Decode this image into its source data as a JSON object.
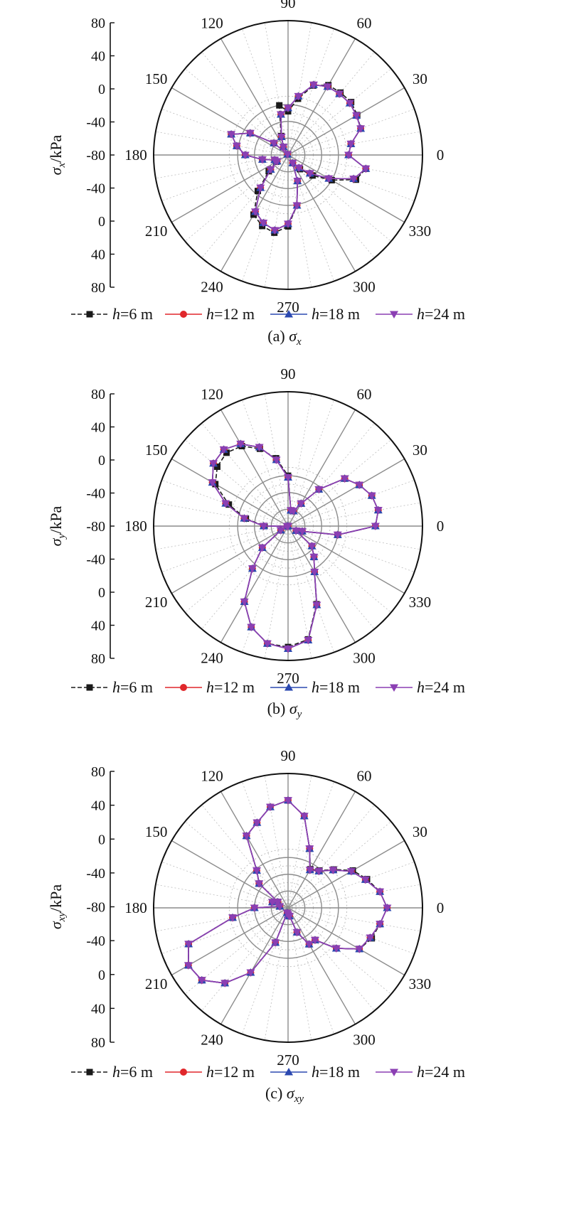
{
  "chart_data": [
    {
      "type": "polar-line",
      "caption": "(a) σx",
      "caption_prefix": "(a)",
      "caption_symbol": "σ",
      "caption_sub": "x",
      "ylabel_symbol": "σ",
      "ylabel_sub": "x",
      "ylabel_unit": "/kPa",
      "radial_ticks": [
        "80",
        "40",
        "0",
        "-40",
        "-80",
        "-40",
        "0",
        "40",
        "80"
      ],
      "angle_labels": [
        "0",
        "30",
        "60",
        "90",
        "120",
        "150",
        "180",
        "210",
        "240",
        "270",
        "300",
        "330"
      ],
      "r_range": [
        -80,
        80
      ],
      "angle_step_deg": 10,
      "grid": true,
      "legend_position": "bottom",
      "series": [
        {
          "name": "h=6 m",
          "color": "#1a1a1a",
          "marker": "square",
          "dashed": true,
          "values": [
            -8,
            -4,
            12,
            15,
            18,
            17,
            16,
            8,
            -12,
            -28,
            -20,
            -56,
            -69,
            -79,
            -58,
            -28,
            -8,
            -18,
            -29,
            -49,
            -63,
            -64,
            -50,
            -24,
            2,
            10,
            14,
            5,
            -19,
            -47,
            -69,
            -58,
            -42,
            -20,
            6,
            14
          ]
        },
        {
          "name": "h=12 m",
          "color": "#e0272b",
          "marker": "circle",
          "values": [
            -8,
            -4,
            12,
            14,
            16,
            15,
            14,
            9,
            -9,
            -24,
            -31,
            -57,
            -69,
            -79,
            -58,
            -28,
            -8,
            -18,
            -29,
            -49,
            -63,
            -65,
            -53,
            -29,
            -2,
            6,
            11,
            2,
            -19,
            -47,
            -69,
            -60,
            -46,
            -24,
            3,
            14
          ]
        },
        {
          "name": "h=18 m",
          "color": "#2b48b0",
          "marker": "triangle-up",
          "values": [
            -8,
            -4,
            12,
            14,
            16,
            15,
            14,
            9,
            -9,
            -24,
            -31,
            -57,
            -69,
            -79,
            -58,
            -28,
            -8,
            -18,
            -29,
            -49,
            -63,
            -65,
            -53,
            -29,
            -2,
            6,
            11,
            2,
            -19,
            -47,
            -69,
            -60,
            -46,
            -24,
            3,
            14
          ]
        },
        {
          "name": "h=24 m",
          "color": "#8b3fb3",
          "marker": "triangle-down",
          "values": [
            -8,
            -4,
            12,
            14,
            16,
            15,
            14,
            9,
            -9,
            -24,
            -31,
            -57,
            -69,
            -79,
            -58,
            -28,
            -8,
            -18,
            -29,
            -49,
            -63,
            -65,
            -53,
            -29,
            -2,
            6,
            11,
            2,
            -19,
            -47,
            -69,
            -60,
            -46,
            -24,
            3,
            14
          ]
        }
      ]
    },
    {
      "type": "polar-line",
      "caption": "(b) σy",
      "caption_prefix": "(b)",
      "caption_symbol": "σ",
      "caption_sub": "y",
      "ylabel_symbol": "σ",
      "ylabel_sub": "y",
      "ylabel_unit": "/kPa",
      "radial_ticks": [
        "80",
        "40",
        "0",
        "-40",
        "-80",
        "-40",
        "0",
        "40",
        "80"
      ],
      "angle_labels": [
        "0",
        "30",
        "60",
        "90",
        "120",
        "150",
        "180",
        "210",
        "240",
        "270",
        "300",
        "330"
      ],
      "r_range": [
        -80,
        80
      ],
      "angle_step_deg": 10,
      "grid": true,
      "legend_position": "bottom",
      "series": [
        {
          "name": "h=6 m",
          "color": "#1a1a1a",
          "marker": "square",
          "dashed": true,
          "values": [
            24,
            29,
            26,
            18,
            8,
            -23,
            -49,
            -61,
            -61,
            -20,
            2,
            18,
            30,
            34,
            30,
            20,
            -5,
            -29,
            -52,
            -79,
            -80,
            -70,
            -40,
            -14,
            24,
            48,
            62,
            64,
            57,
            19,
            -17,
            -32,
            -43,
            -69,
            -62,
            -20
          ]
        },
        {
          "name": "h=12 m",
          "color": "#e0272b",
          "marker": "circle",
          "values": [
            24,
            29,
            26,
            18,
            8,
            -23,
            -49,
            -61,
            -61,
            -22,
            0,
            20,
            33,
            39,
            36,
            24,
            -1,
            -27,
            -51,
            -79,
            -80,
            -70,
            -40,
            -14,
            24,
            48,
            62,
            66,
            58,
            20,
            -17,
            -32,
            -43,
            -69,
            -62,
            -20
          ]
        },
        {
          "name": "h=18 m",
          "color": "#2b48b0",
          "marker": "triangle-up",
          "values": [
            24,
            29,
            26,
            18,
            8,
            -23,
            -49,
            -61,
            -61,
            -22,
            0,
            20,
            33,
            39,
            36,
            24,
            -1,
            -27,
            -51,
            -79,
            -80,
            -70,
            -40,
            -14,
            24,
            48,
            62,
            66,
            58,
            20,
            -17,
            -32,
            -43,
            -69,
            -62,
            -20
          ]
        },
        {
          "name": "h=24 m",
          "color": "#8b3fb3",
          "marker": "triangle-down",
          "values": [
            24,
            29,
            26,
            18,
            8,
            -23,
            -49,
            -61,
            -61,
            -22,
            0,
            20,
            33,
            39,
            36,
            24,
            -1,
            -27,
            -51,
            -79,
            -80,
            -70,
            -40,
            -14,
            24,
            48,
            62,
            66,
            58,
            20,
            -17,
            -32,
            -43,
            -69,
            -62,
            -20
          ]
        }
      ]
    },
    {
      "type": "polar-line",
      "caption": "(c) σxy",
      "caption_prefix": "(c)",
      "caption_symbol": "σ",
      "caption_sub": "xy",
      "ylabel_symbol": "σ",
      "ylabel_sub": "xy",
      "ylabel_unit": "/kPa",
      "radial_ticks": [
        "80",
        "40",
        "0",
        "-40",
        "-80",
        "-40",
        "0",
        "40",
        "80"
      ],
      "angle_labels": [
        "0",
        "30",
        "60",
        "90",
        "120",
        "150",
        "180",
        "210",
        "240",
        "270",
        "300",
        "330"
      ],
      "r_range": [
        -80,
        80
      ],
      "angle_step_deg": 10,
      "grid": true,
      "legend_position": "bottom",
      "series": [
        {
          "name": "h=6 m",
          "color": "#1a1a1a",
          "marker": "square",
          "dashed": true,
          "values": [
            38,
            31,
            20,
            9,
            -9,
            -22,
            -27,
            -5,
            31,
            48,
            42,
            28,
            19,
            -22,
            -35,
            -66,
            -60,
            -70,
            -40,
            -13,
            46,
            57,
            54,
            37,
            9,
            -36,
            -74,
            -72,
            -70,
            -49,
            -30,
            -30,
            -5,
            18,
            26,
            31
          ]
        },
        {
          "name": "h=12 m",
          "color": "#e0272b",
          "marker": "circle",
          "values": [
            38,
            31,
            18,
            7,
            -10,
            -23,
            -28,
            -5,
            31,
            48,
            42,
            28,
            19,
            -22,
            -35,
            -66,
            -60,
            -70,
            -40,
            -13,
            46,
            57,
            54,
            37,
            9,
            -36,
            -74,
            -72,
            -70,
            -49,
            -30,
            -30,
            -5,
            18,
            24,
            31
          ]
        },
        {
          "name": "h=18 m",
          "color": "#2b48b0",
          "marker": "triangle-up",
          "values": [
            38,
            31,
            18,
            7,
            -10,
            -23,
            -28,
            -5,
            31,
            48,
            42,
            28,
            19,
            -22,
            -35,
            -66,
            -60,
            -70,
            -40,
            -13,
            46,
            57,
            54,
            37,
            9,
            -36,
            -74,
            -72,
            -70,
            -49,
            -30,
            -30,
            -5,
            18,
            24,
            31
          ]
        },
        {
          "name": "h=24 m",
          "color": "#8b3fb3",
          "marker": "triangle-down",
          "values": [
            38,
            31,
            18,
            7,
            -10,
            -23,
            -28,
            -5,
            31,
            48,
            42,
            28,
            19,
            -22,
            -35,
            -66,
            -60,
            -70,
            -40,
            -13,
            46,
            57,
            54,
            37,
            9,
            -36,
            -74,
            -72,
            -70,
            -49,
            -30,
            -30,
            -5,
            18,
            24,
            31
          ]
        }
      ]
    }
  ]
}
